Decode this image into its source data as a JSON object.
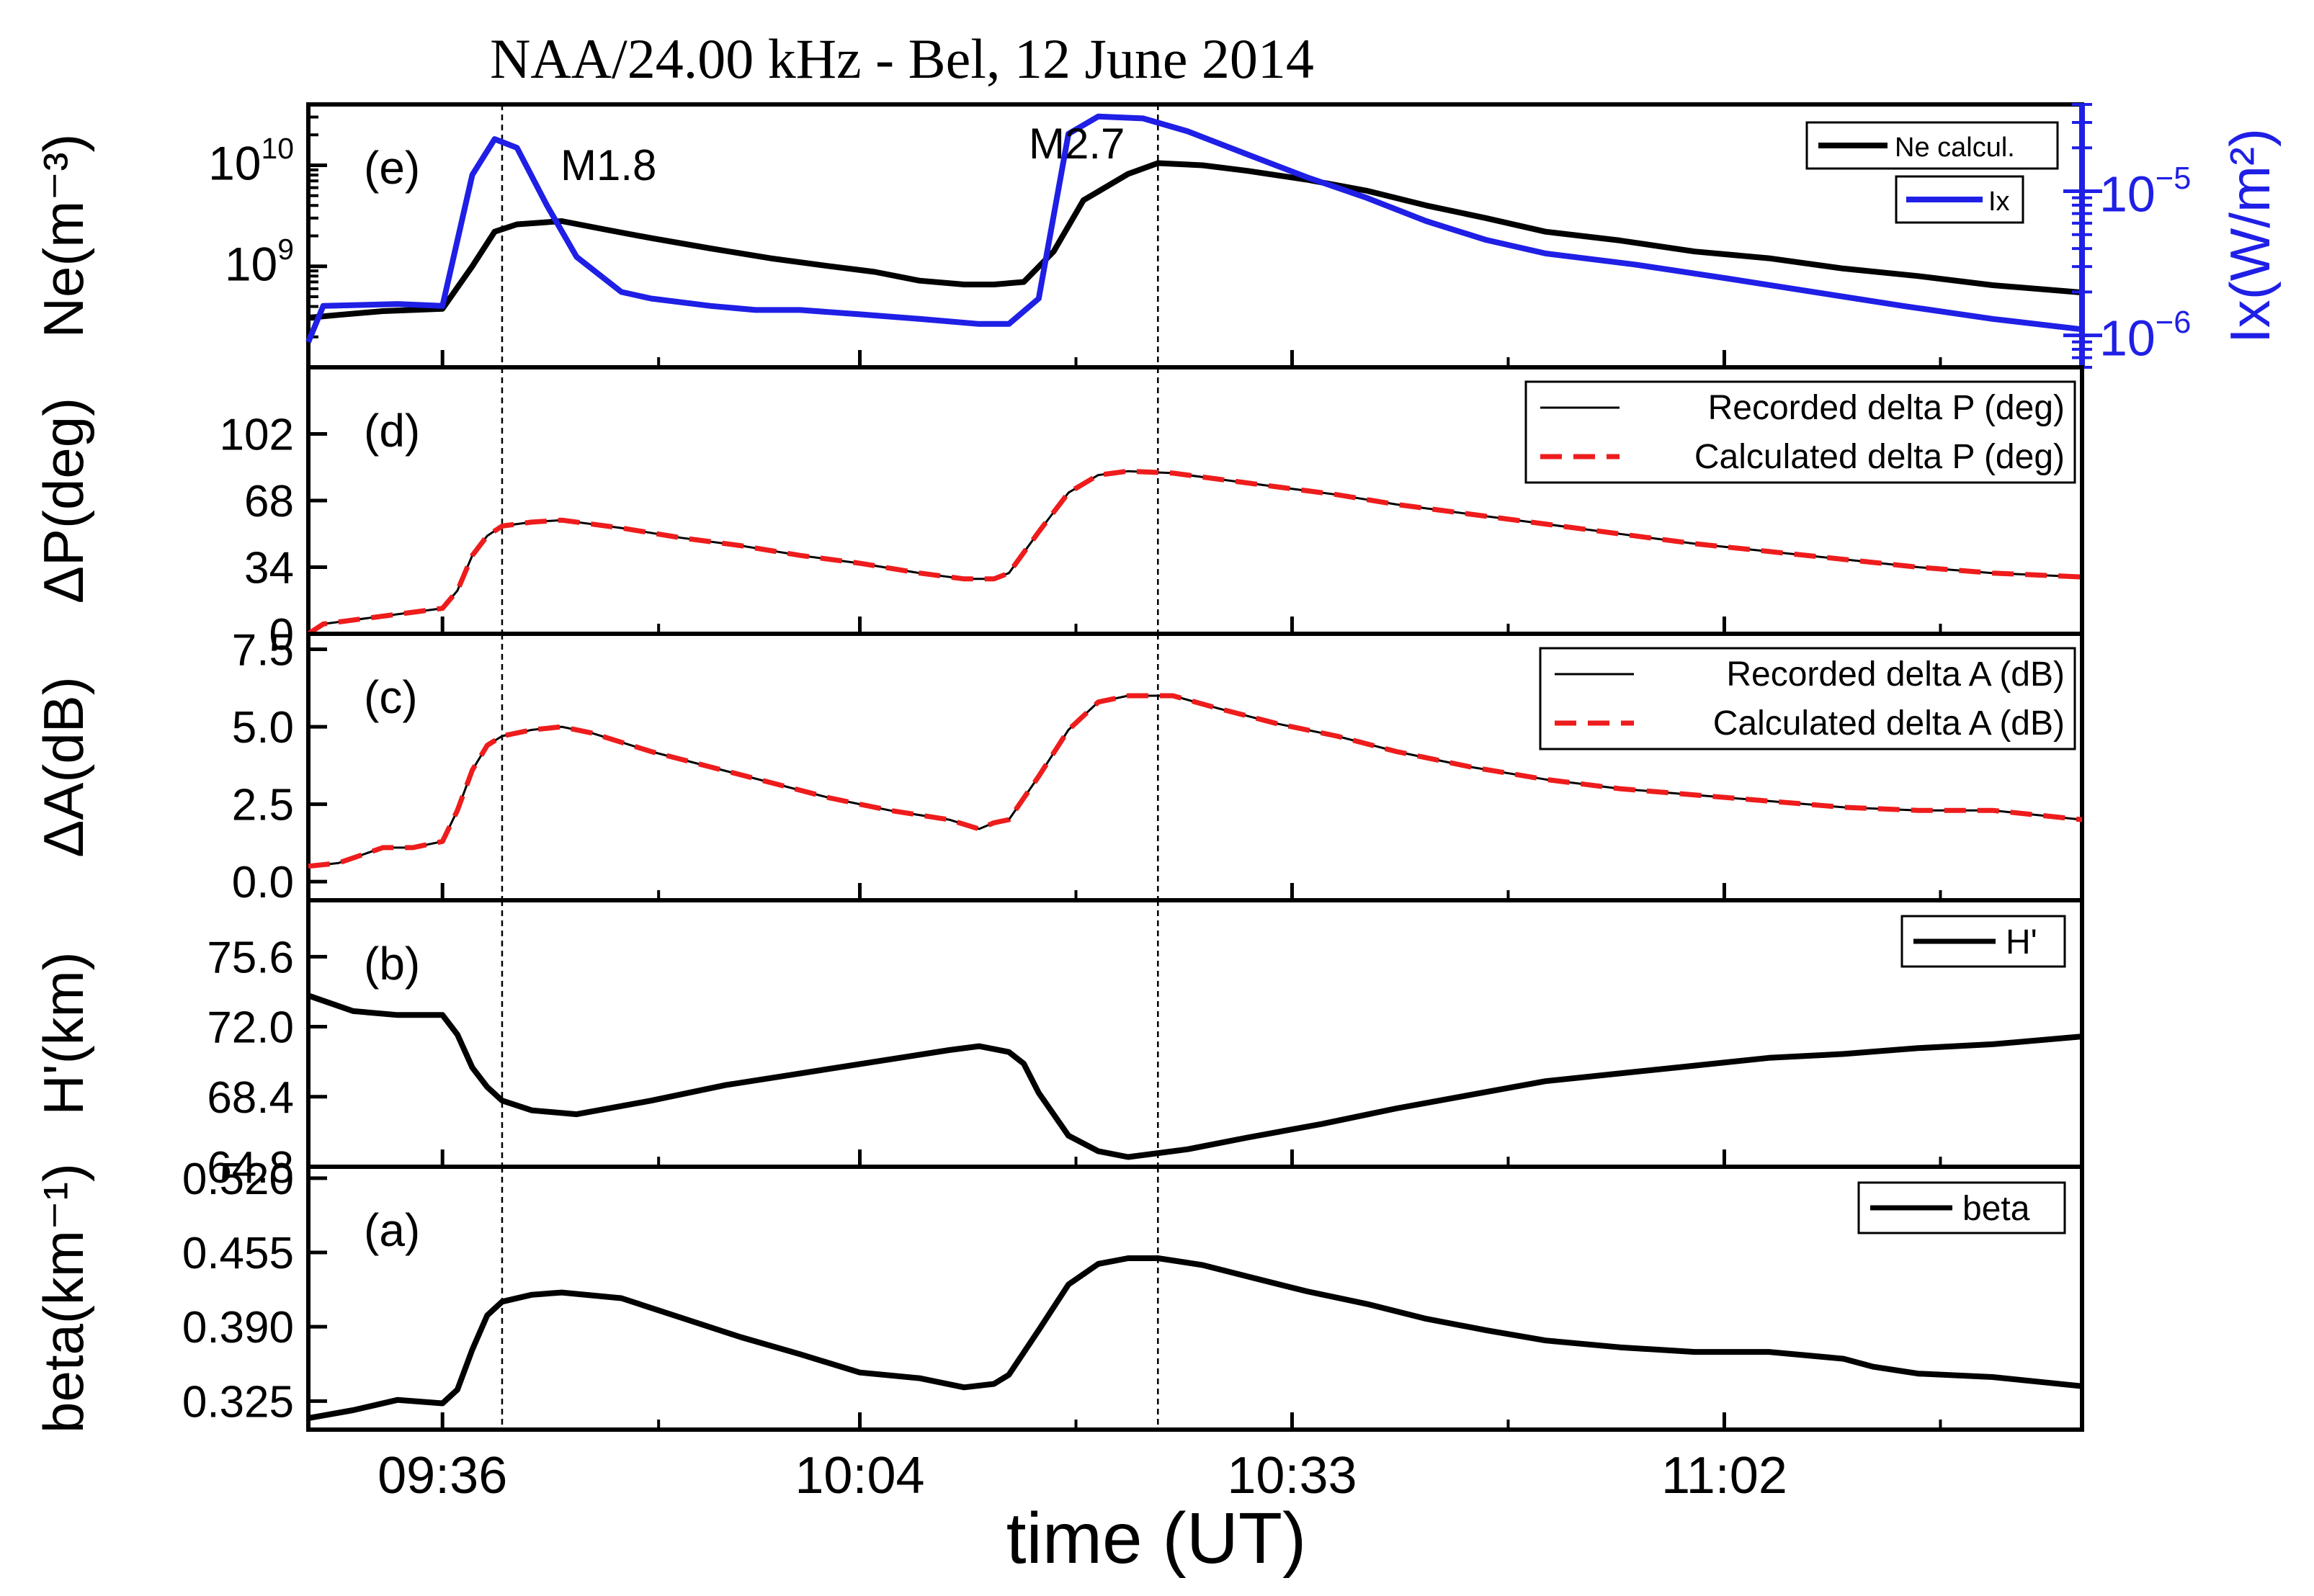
{
  "chart_data": {
    "type": "line",
    "title": "NAA/24.00 kHz - Bel, 12 June 2014",
    "xlabel": "time (UT)",
    "x_ticks": [
      "09:36",
      "10:04",
      "10:33",
      "11:02"
    ],
    "x_tick_minutes": [
      576,
      604,
      633,
      662
    ],
    "xlim": [
      567,
      686
    ],
    "flare_markers": [
      {
        "label": "M1.8",
        "time_min": 580.0
      },
      {
        "label": "M2.7",
        "time_min": 624.0
      }
    ],
    "panels": [
      {
        "id": "e",
        "tag": "(e)",
        "ylabel": "Ne(m⁻³)",
        "y_scale": "log",
        "ylim": [
          100000000.0,
          40000000000.0
        ],
        "y_ticks": [
          {
            "base": "10",
            "exp": "10",
            "value": 10000000000.0
          },
          {
            "base": "10",
            "exp": "9",
            "value": 1000000000.0
          }
        ],
        "right_axis": {
          "label": "Ix(W/m²)",
          "ylim": [
            6e-07,
            4e-05
          ],
          "ticks": [
            {
              "base": "10",
              "exp": "−5",
              "value": 1e-05
            },
            {
              "base": "10",
              "exp": "−6",
              "value": 1e-06
            }
          ]
        },
        "legend": [
          "Ne calcul.",
          "Ix"
        ],
        "series": [
          {
            "name": "Ne calcul.",
            "color": "#000000",
            "axis": "left",
            "x": [
              567,
              569,
              572,
              576,
              578,
              579.5,
              581,
              584,
              587,
              590,
              594,
              598,
              602,
              605,
              608,
              611,
              613,
              615,
              617,
              619,
              622,
              624,
              627,
              630,
              634,
              638,
              642,
              646,
              650,
              655,
              660,
              665,
              670,
              675,
              680,
              686
            ],
            "y": [
              310000000.0,
              330000000.0,
              360000000.0,
              380000000.0,
              1000000000.0,
              2200000000.0,
              2600000000.0,
              2800000000.0,
              2300000000.0,
              1900000000.0,
              1500000000.0,
              1200000000.0,
              1000000000.0,
              880000000.0,
              720000000.0,
              660000000.0,
              660000000.0,
              700000000.0,
              1400000000.0,
              4500000000.0,
              8200000000.0,
              10500000000.0,
              10000000000.0,
              8800000000.0,
              7200000000.0,
              5600000000.0,
              4000000000.0,
              3000000000.0,
              2200000000.0,
              1800000000.0,
              1400000000.0,
              1200000000.0,
              950000000.0,
              800000000.0,
              650000000.0,
              550000000.0
            ]
          },
          {
            "name": "Ix",
            "color": "#1f1fe6",
            "axis": "right",
            "x": [
              567,
              568,
              573,
              576,
              578,
              579.5,
              581,
              583,
              585,
              588,
              590,
              594,
              597,
              600,
              604,
              608,
              612,
              614,
              616,
              618,
              620,
              623,
              626,
              630,
              634,
              638,
              642,
              646,
              650,
              656,
              662,
              668,
              674,
              680,
              686
            ],
            "y": [
              9e-07,
              1.6e-06,
              1.65e-06,
              1.6e-06,
              1.3e-05,
              2.3e-05,
              2e-05,
              8e-06,
              3.5e-06,
              2e-06,
              1.8e-06,
              1.6e-06,
              1.5e-06,
              1.5e-06,
              1.4e-06,
              1.3e-06,
              1.2e-06,
              1.2e-06,
              1.8e-06,
              2.5e-05,
              3.3e-05,
              3.2e-05,
              2.6e-05,
              1.8e-05,
              1.25e-05,
              9e-06,
              6.2e-06,
              4.6e-06,
              3.7e-06,
              3.1e-06,
              2.5e-06,
              2e-06,
              1.6e-06,
              1.3e-06,
              1.1e-06
            ]
          }
        ],
        "annotations": [
          "M1.8",
          "M2.7"
        ]
      },
      {
        "id": "d",
        "tag": "(d)",
        "ylabel": "ΔP(deg)",
        "y_scale": "linear",
        "ylim": [
          0,
          136
        ],
        "y_ticks": [
          "0",
          "34",
          "68",
          "102"
        ],
        "legend": [
          "Recorded delta P (deg)",
          "Calculated delta P (deg)"
        ],
        "series": [
          {
            "name": "Recorded delta P (deg)",
            "color": "#000000",
            "style": "solid",
            "x": [
              567,
              568,
              571,
              574,
              576,
              577,
              578,
              579,
              580,
              582,
              584,
              588,
              592,
              596,
              600,
              604,
              608,
              611,
              613,
              614,
              616,
              618,
              620,
              622,
              625,
              628,
              632,
              636,
              640,
              645,
              650,
              655,
              660,
              665,
              670,
              675,
              680,
              686
            ],
            "y": [
              0,
              5,
              8,
              11,
              13,
              22,
              40,
              50,
              55,
              57,
              58,
              54,
              49,
              45,
              40,
              36,
              31,
              28,
              28,
              31,
              52,
              72,
              81,
              83,
              82,
              79,
              75,
              71,
              66,
              61,
              56,
              51,
              46,
              42,
              38,
              34,
              31,
              29
            ]
          },
          {
            "name": "Calculated delta P (deg)",
            "color": "#ee1c1c",
            "style": "dashed",
            "x": [
              567,
              568,
              571,
              574,
              576,
              577,
              578,
              579,
              580,
              582,
              584,
              588,
              592,
              596,
              600,
              604,
              608,
              611,
              613,
              614,
              616,
              618,
              620,
              622,
              625,
              628,
              632,
              636,
              640,
              645,
              650,
              655,
              660,
              665,
              670,
              675,
              680,
              686
            ],
            "y": [
              0,
              5,
              8,
              11,
              13,
              22,
              40,
              50,
              55,
              57,
              58,
              54,
              49,
              45,
              40,
              36,
              31,
              28,
              28,
              31,
              52,
              72,
              81,
              83,
              82,
              79,
              75,
              71,
              66,
              61,
              56,
              51,
              46,
              42,
              38,
              34,
              31,
              29
            ]
          }
        ]
      },
      {
        "id": "c",
        "tag": "(c)",
        "ylabel": "ΔA(dB)",
        "y_scale": "linear",
        "ylim": [
          -0.6,
          8.0
        ],
        "y_ticks": [
          "0.0",
          "2.5",
          "5.0",
          "7.5"
        ],
        "legend": [
          "Recorded delta A (dB)",
          "Calculated delta A (dB)"
        ],
        "series": [
          {
            "name": "Recorded delta A (dB)",
            "color": "#000000",
            "style": "solid",
            "x": [
              567,
              569,
              572,
              574,
              576,
              577,
              578,
              579,
              580,
              582,
              584,
              586,
              590,
              594,
              598,
              602,
              606,
              610,
              612,
              613,
              614,
              616,
              618,
              620,
              622,
              625,
              628,
              632,
              636,
              640,
              645,
              650,
              655,
              660,
              665,
              670,
              675,
              680,
              686
            ],
            "y": [
              0.5,
              0.6,
              1.1,
              1.1,
              1.3,
              2.3,
              3.6,
              4.4,
              4.7,
              4.9,
              5.0,
              4.8,
              4.2,
              3.7,
              3.2,
              2.7,
              2.3,
              2.0,
              1.7,
              1.9,
              2.0,
              3.4,
              4.9,
              5.8,
              6.0,
              6.0,
              5.6,
              5.1,
              4.7,
              4.2,
              3.7,
              3.3,
              3.0,
              2.8,
              2.6,
              2.4,
              2.3,
              2.3,
              2.0
            ]
          },
          {
            "name": "Calculated delta A (dB)",
            "color": "#ee1c1c",
            "style": "dashed",
            "x": [
              567,
              569,
              572,
              574,
              576,
              577,
              578,
              579,
              580,
              582,
              584,
              586,
              590,
              594,
              598,
              602,
              606,
              610,
              612,
              613,
              614,
              616,
              618,
              620,
              622,
              625,
              628,
              632,
              636,
              640,
              645,
              650,
              655,
              660,
              665,
              670,
              675,
              680,
              686
            ],
            "y": [
              0.5,
              0.6,
              1.1,
              1.1,
              1.3,
              2.3,
              3.6,
              4.4,
              4.7,
              4.9,
              5.0,
              4.8,
              4.2,
              3.7,
              3.2,
              2.7,
              2.3,
              2.0,
              1.7,
              1.9,
              2.0,
              3.4,
              4.9,
              5.8,
              6.0,
              6.0,
              5.6,
              5.1,
              4.7,
              4.2,
              3.7,
              3.3,
              3.0,
              2.8,
              2.6,
              2.4,
              2.3,
              2.3,
              2.0
            ]
          }
        ]
      },
      {
        "id": "b",
        "tag": "(b)",
        "ylabel": "H'(km)",
        "y_scale": "linear",
        "ylim": [
          64.8,
          78.5
        ],
        "y_ticks": [
          "64.8",
          "68.4",
          "72.0",
          "75.6"
        ],
        "legend": [
          "H'"
        ],
        "series": [
          {
            "name": "H'",
            "color": "#000000",
            "style": "solid",
            "x": [
              567,
              570,
              573,
              576,
              577,
              578,
              579,
              580,
              582,
              585,
              590,
              595,
              600,
              605,
              610,
              612,
              614,
              615,
              616,
              617,
              618,
              620,
              622,
              624,
              626,
              630,
              635,
              640,
              645,
              650,
              655,
              660,
              665,
              670,
              675,
              680,
              686
            ],
            "y": [
              73.6,
              72.8,
              72.6,
              72.6,
              71.6,
              69.9,
              68.9,
              68.2,
              67.7,
              67.5,
              68.2,
              69.0,
              69.6,
              70.2,
              70.8,
              71.0,
              70.7,
              70.1,
              68.6,
              67.5,
              66.4,
              65.6,
              65.3,
              65.5,
              65.7,
              66.3,
              67.0,
              67.8,
              68.5,
              69.2,
              69.6,
              70.0,
              70.4,
              70.6,
              70.9,
              71.1,
              71.5
            ]
          }
        ]
      },
      {
        "id": "a",
        "tag": "(a)",
        "ylabel": "beta(km⁻¹)",
        "y_scale": "linear",
        "ylim": [
          0.3,
          0.53
        ],
        "y_ticks": [
          "0.325",
          "0.390",
          "0.455",
          "0.520"
        ],
        "legend": [
          "beta"
        ],
        "series": [
          {
            "name": "beta",
            "color": "#000000",
            "style": "solid",
            "x": [
              567,
              570,
              573,
              576,
              577,
              578,
              579,
              580,
              582,
              584,
              588,
              592,
              596,
              600,
              604,
              608,
              611,
              613,
              614,
              616,
              618,
              620,
              622,
              624,
              627,
              630,
              634,
              638,
              642,
              646,
              650,
              655,
              660,
              665,
              670,
              672,
              675,
              680,
              686
            ],
            "y": [
              0.31,
              0.317,
              0.326,
              0.323,
              0.335,
              0.37,
              0.4,
              0.412,
              0.418,
              0.42,
              0.415,
              0.398,
              0.381,
              0.366,
              0.35,
              0.345,
              0.337,
              0.34,
              0.348,
              0.387,
              0.427,
              0.445,
              0.45,
              0.45,
              0.444,
              0.434,
              0.421,
              0.41,
              0.397,
              0.387,
              0.378,
              0.372,
              0.368,
              0.368,
              0.362,
              0.355,
              0.349,
              0.346,
              0.338
            ]
          }
        ]
      }
    ]
  }
}
